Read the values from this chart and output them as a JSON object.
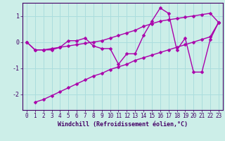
{
  "xlabel": "Windchill (Refroidissement éolien,°C)",
  "x_values": [
    0,
    1,
    2,
    3,
    4,
    5,
    6,
    7,
    8,
    9,
    10,
    11,
    12,
    13,
    14,
    15,
    16,
    17,
    18,
    19,
    20,
    21,
    22,
    23
  ],
  "jagged_line": [
    0.0,
    -0.3,
    -0.3,
    -0.3,
    -0.2,
    0.05,
    0.05,
    0.15,
    -0.15,
    -0.25,
    -0.25,
    -0.85,
    -0.45,
    -0.45,
    0.25,
    0.8,
    1.3,
    1.1,
    -0.3,
    0.15,
    -1.15,
    -1.15,
    0.1,
    0.75
  ],
  "upper_line": [
    0.0,
    -0.3,
    -0.3,
    -0.25,
    -0.2,
    -0.15,
    -0.1,
    -0.05,
    0.0,
    0.05,
    0.15,
    0.25,
    0.35,
    0.45,
    0.6,
    0.7,
    0.8,
    0.85,
    0.9,
    0.95,
    1.0,
    1.05,
    1.1,
    0.75
  ],
  "lower_line": [
    null,
    -2.3,
    -2.2,
    -2.05,
    -1.9,
    -1.75,
    -1.6,
    -1.45,
    -1.3,
    -1.2,
    -1.05,
    -0.95,
    -0.85,
    -0.7,
    -0.6,
    -0.5,
    -0.4,
    -0.3,
    -0.2,
    -0.1,
    0.0,
    0.1,
    0.2,
    0.75
  ],
  "line_color": "#aa00aa",
  "bg_color": "#cceee8",
  "grid_color": "#aadddd",
  "axis_color": "#440066",
  "text_color": "#440066",
  "ylim": [
    -2.6,
    1.5
  ],
  "xlim": [
    -0.5,
    23.5
  ],
  "yticks": [
    -2,
    -1,
    0,
    1
  ],
  "xticks": [
    0,
    1,
    2,
    3,
    4,
    5,
    6,
    7,
    8,
    9,
    10,
    11,
    12,
    13,
    14,
    15,
    16,
    17,
    18,
    19,
    20,
    21,
    22,
    23
  ],
  "marker": "D",
  "markersize": 2.5,
  "linewidth": 1.0,
  "font_family": "monospace",
  "tick_fontsize": 5.5,
  "label_fontsize": 6.0
}
